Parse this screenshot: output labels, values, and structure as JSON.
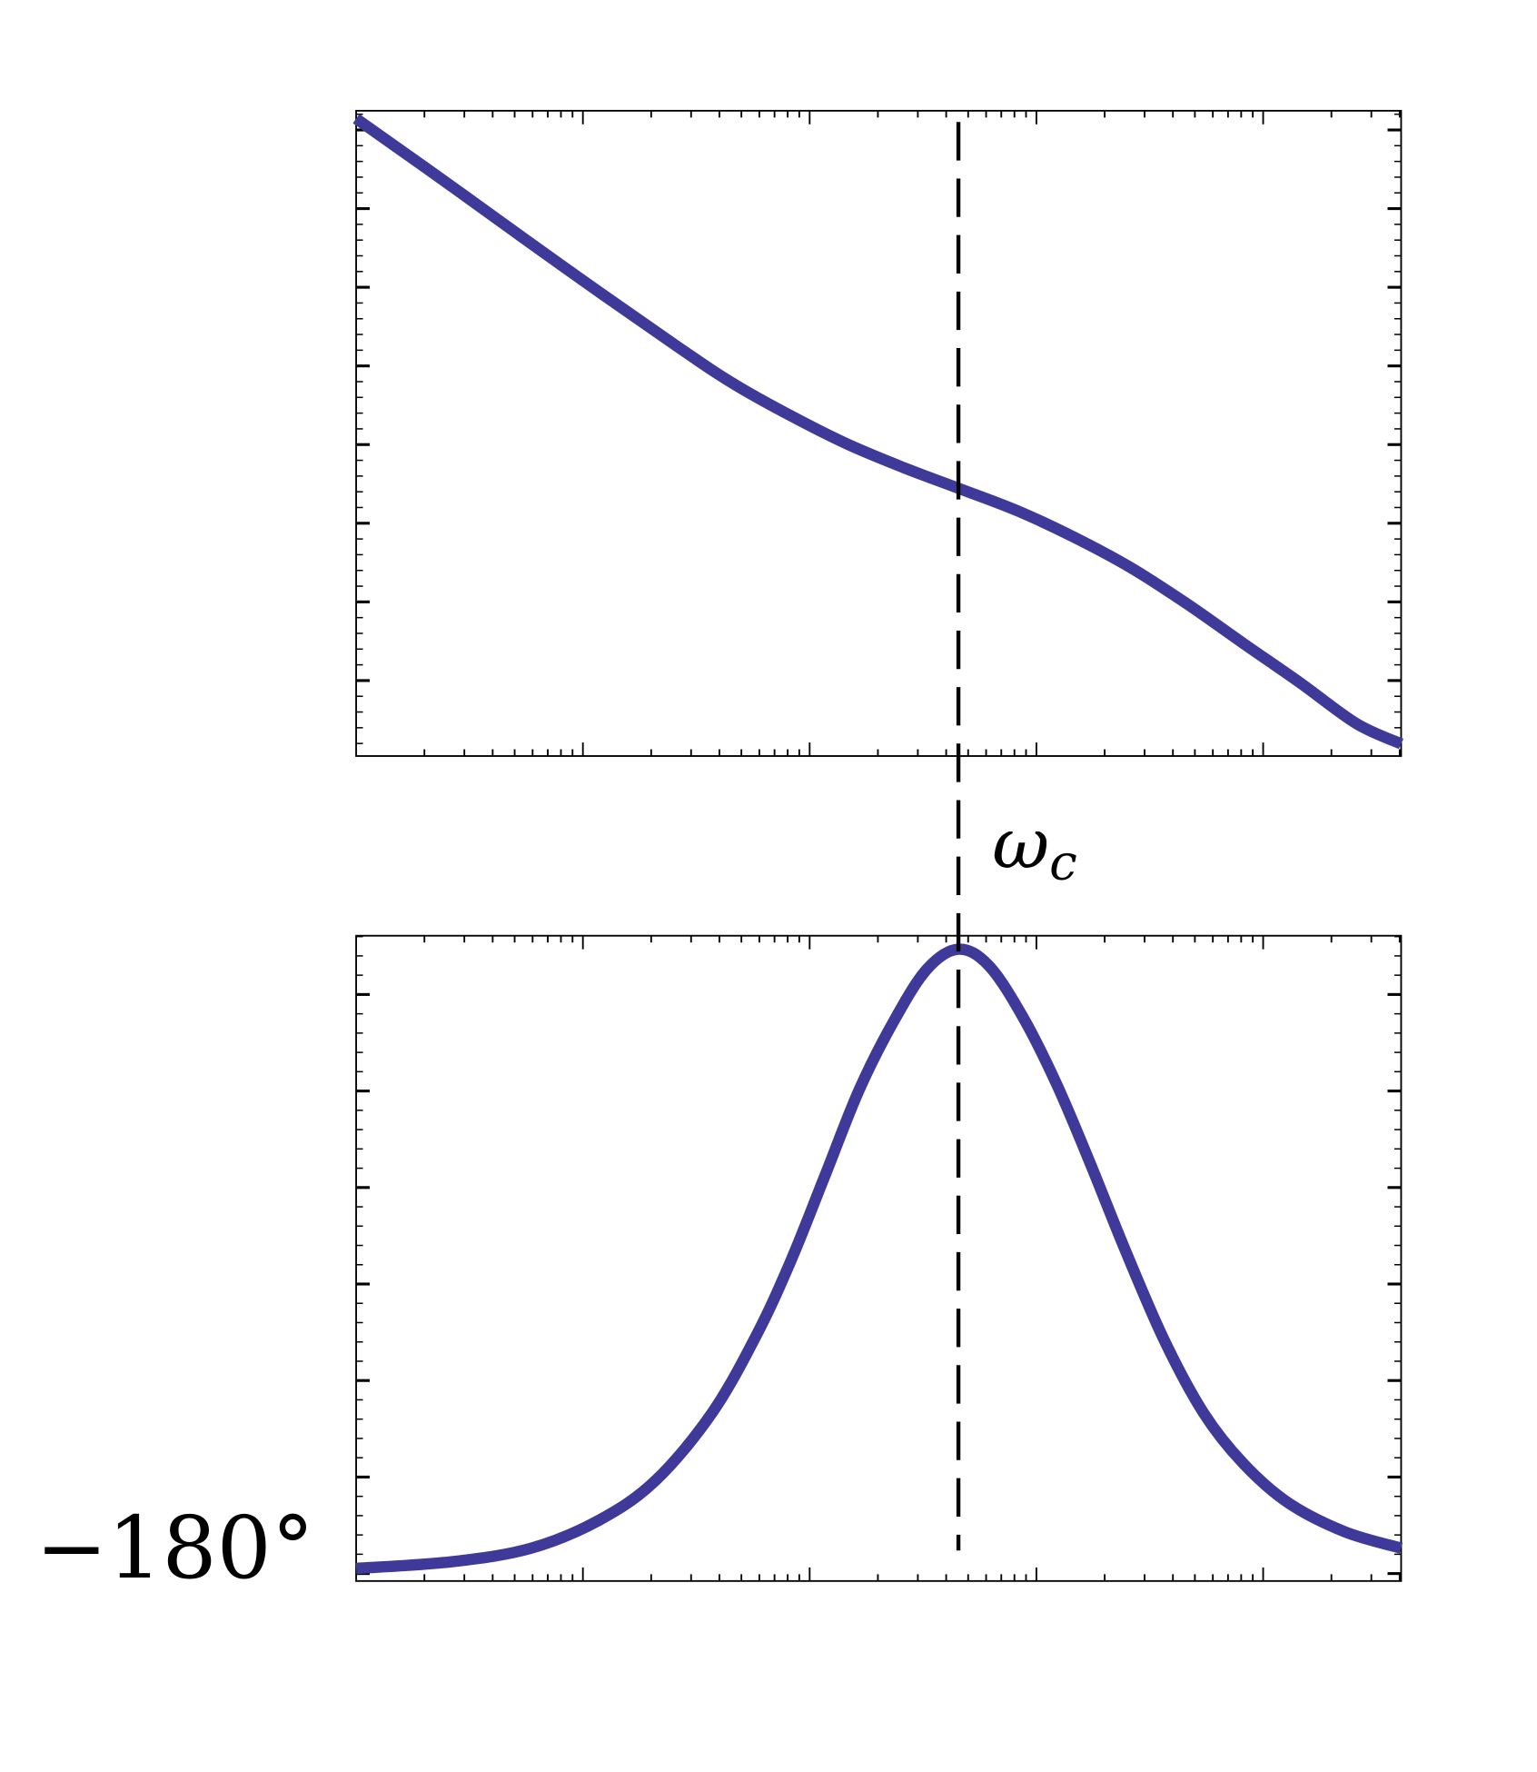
{
  "chart_data": [
    {
      "type": "line",
      "panel": "magnitude",
      "xscale": "log",
      "xlim": [
        0.01,
        406
      ],
      "ylim": [
        -68.1,
        96.0
      ],
      "grid": false,
      "x": [
        0.01,
        0.0265,
        0.0836,
        0.263,
        0.467,
        0.828,
        1.47,
        2.61,
        4.53,
        8.22,
        14.6,
        25.9,
        45.9,
        81.5,
        145,
        257,
        406
      ],
      "y": [
        94.0,
        76.7,
        56.0,
        35.9,
        26.4,
        18.4,
        11.2,
        5.2,
        0,
        -5.7,
        -12.4,
        -20.1,
        -29.3,
        -39.4,
        -49.4,
        -59.8,
        -65.0
      ],
      "color": "#3f3a9a"
    },
    {
      "type": "line",
      "panel": "phase",
      "xscale": "log",
      "xlim": [
        0.01,
        406
      ],
      "ylim": [
        -180.8,
        -114.0
      ],
      "grid": false,
      "ytick_labels": [
        {
          "value": -180,
          "label": "−180°"
        }
      ],
      "x": [
        0.01,
        0.0265,
        0.0592,
        0.118,
        0.209,
        0.371,
        0.587,
        0.828,
        1.17,
        1.65,
        2.33,
        3.28,
        4.53,
        6.17,
        8.71,
        12.3,
        17.3,
        24.5,
        36.5,
        54.6,
        81.5,
        129,
        229,
        406
      ],
      "y": [
        -179.5,
        -178.8,
        -177.4,
        -174.5,
        -170.4,
        -163.4,
        -155.2,
        -147.6,
        -138.8,
        -130.0,
        -123.0,
        -117.5,
        -115.4,
        -117.1,
        -122.4,
        -129.4,
        -137.6,
        -146.4,
        -155.8,
        -163.4,
        -168.6,
        -172.7,
        -175.7,
        -177.4
      ],
      "color": "#3f3a9a"
    }
  ],
  "annotation": {
    "crossover_x": 4.53,
    "label_main": "ω",
    "label_sub": "c",
    "line_style": "dashed"
  }
}
